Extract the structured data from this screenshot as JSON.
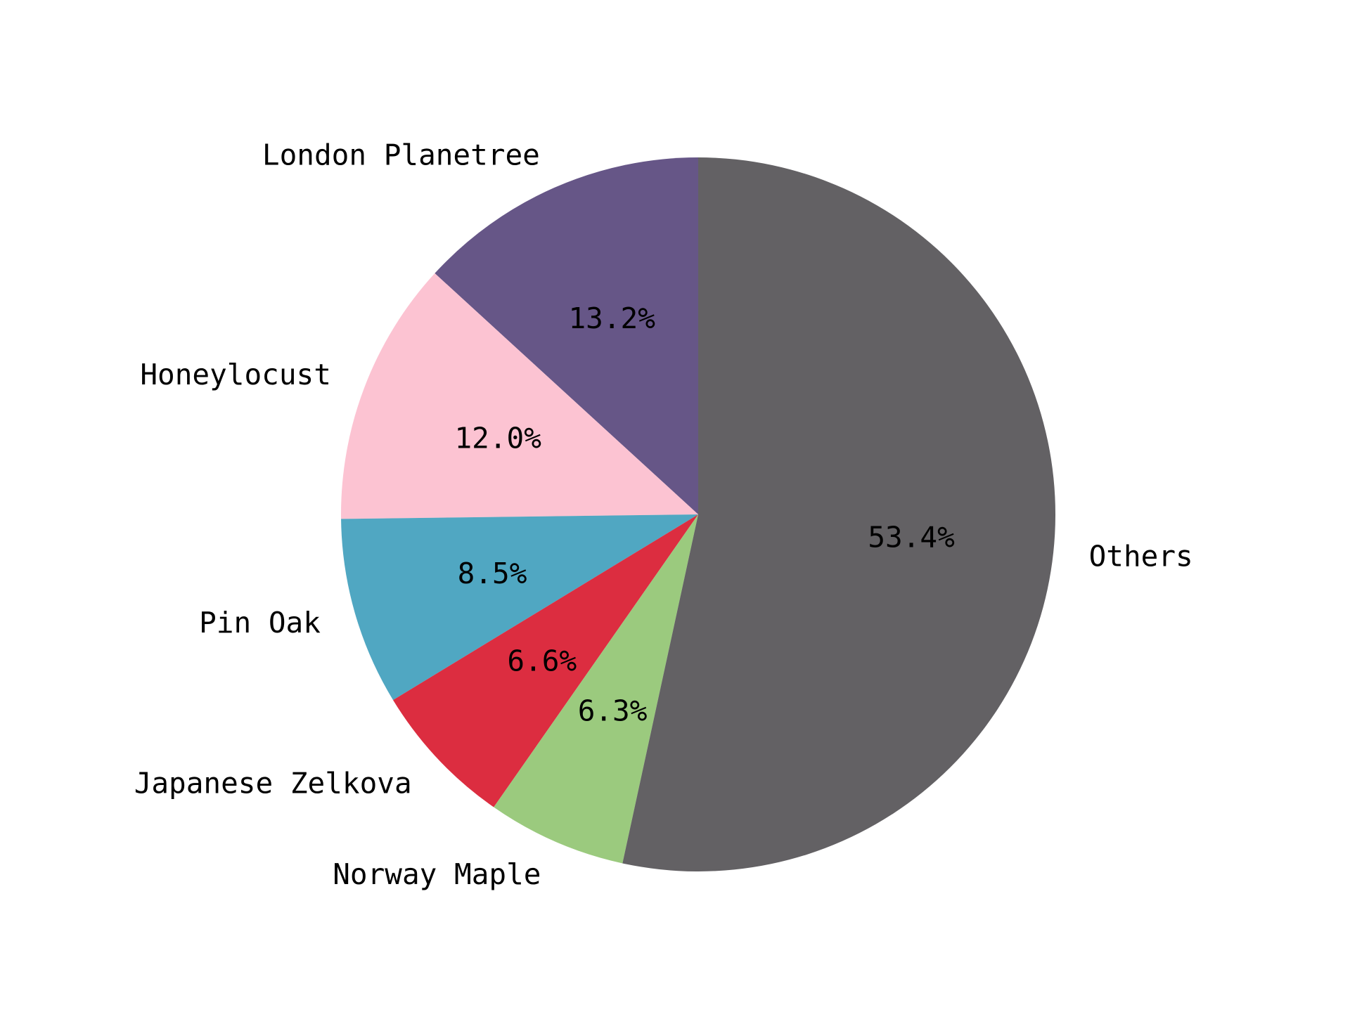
{
  "chart_data": {
    "type": "pie",
    "title": "",
    "start_angle_deg": 90,
    "direction": "counterclockwise",
    "slices": [
      {
        "label": "London Planetree",
        "value": 13.2,
        "pct_label": "13.2%",
        "color": "#665687"
      },
      {
        "label": "Honeylocust",
        "value": 12.0,
        "pct_label": "12.0%",
        "color": "#fcc3d2"
      },
      {
        "label": "Pin Oak",
        "value": 8.5,
        "pct_label": "8.5%",
        "color": "#50a7c2"
      },
      {
        "label": "Japanese Zelkova",
        "value": 6.6,
        "pct_label": "6.6%",
        "color": "#dc2d40"
      },
      {
        "label": "Norway Maple",
        "value": 6.3,
        "pct_label": "6.3%",
        "color": "#9bca7e"
      },
      {
        "label": "Others",
        "value": 53.4,
        "pct_label": "53.4%",
        "color": "#636164"
      }
    ]
  }
}
